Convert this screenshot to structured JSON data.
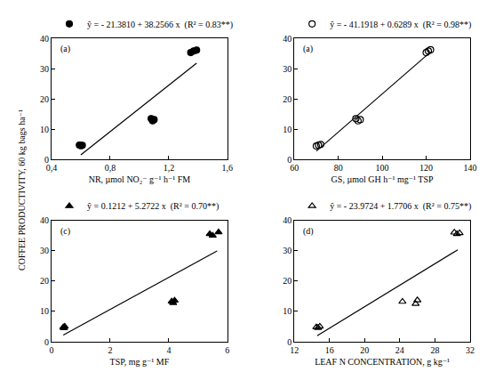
{
  "y_label": "COFFEE PRODUCTIVITY, 60 kg bags ha⁻¹",
  "chart_data": [
    {
      "type": "scatter",
      "panel": "(a)",
      "legend_text": "ŷ = - 21.3810 + 38.2566 x  (R² = 0.83**)",
      "x_label": "NR, µmol NO₂⁻ g⁻¹ h⁻¹ FM",
      "x": [
        0.59,
        0.6,
        0.61,
        1.08,
        1.09,
        1.1,
        1.35,
        1.37,
        1.39
      ],
      "values": [
        4.8,
        4.6,
        4.7,
        13.5,
        12.8,
        13.2,
        35.3,
        35.8,
        36.1
      ],
      "fit_line": {
        "x": [
          0.6,
          1.39
        ],
        "y": [
          1.6,
          31.8
        ]
      },
      "color": "#000000",
      "marker": "circle",
      "line_style": "solid",
      "grid": false,
      "xlim": [
        0.4,
        1.6
      ],
      "xticks": [
        {
          "value": 0.4,
          "label": "0,4"
        },
        {
          "value": 0.8,
          "label": "0,8"
        },
        {
          "value": 1.2,
          "label": "1,2"
        },
        {
          "value": 1.6,
          "label": "1,6"
        }
      ],
      "ylim": [
        0,
        40
      ],
      "yticks": [
        0,
        10,
        20,
        30,
        40
      ]
    },
    {
      "type": "scatter",
      "panel": "(a)",
      "legend_text": "ŷ = - 41.1918 + 0.6289 x  (R² = 0.98**)",
      "x_label": "GS, µmol GH h⁻¹ mg⁻¹ TSP",
      "x": [
        70,
        71,
        72,
        88,
        89,
        90,
        120,
        121,
        122
      ],
      "values": [
        4.5,
        4.8,
        5.0,
        13.5,
        12.8,
        13.2,
        35.3,
        35.8,
        36.2
      ],
      "fit_line": {
        "x": [
          70,
          122
        ],
        "y": [
          2.8,
          35.5
        ]
      },
      "color": "#000000",
      "marker": "circle-open",
      "line_style": "solid",
      "grid": false,
      "xlim": [
        60,
        140
      ],
      "xticks": [
        60,
        80,
        100,
        120,
        140
      ],
      "ylim": [
        0,
        40
      ],
      "yticks": [
        0,
        10,
        20,
        30,
        40
      ]
    },
    {
      "type": "scatter",
      "panel": "(c)",
      "legend_text": "ŷ = 0.1212 + 5.2722 x  (R² = 0.70**)",
      "x_label": "TSP, mg g⁻¹ MF",
      "x": [
        0.4,
        0.42,
        0.45,
        4.1,
        4.15,
        4.2,
        5.4,
        5.5,
        5.7
      ],
      "values": [
        4.8,
        4.5,
        5.0,
        13.3,
        12.8,
        13.6,
        35.5,
        35.0,
        36.1
      ],
      "fit_line": {
        "x": [
          0.4,
          5.65
        ],
        "y": [
          2.2,
          29.9
        ]
      },
      "color": "#000000",
      "marker": "triangle-up",
      "line_style": "solid",
      "grid": false,
      "xlim": [
        0,
        6
      ],
      "xticks": [
        0,
        2,
        4,
        6
      ],
      "ylim": [
        0,
        40
      ],
      "yticks": [
        0,
        10,
        20,
        30,
        40
      ]
    },
    {
      "type": "scatter",
      "panel": "(d)",
      "legend_text": "ŷ = - 23.9724 + 1.7706 x  (R² = 0.75**)",
      "x_label": "LEAF N CONCENTRATION, g kg⁻¹",
      "x": [
        14.5,
        14.7,
        14.9,
        24.3,
        25.8,
        26.0,
        30.2,
        30.5,
        30.8
      ],
      "values": [
        4.8,
        4.6,
        5.0,
        13.2,
        12.5,
        13.7,
        36.0,
        35.5,
        35.8
      ],
      "fit_line": {
        "x": [
          14.6,
          30.6
        ],
        "y": [
          2.0,
          30.3
        ]
      },
      "color": "#000000",
      "marker": "triangle-up-open",
      "line_style": "solid",
      "grid": false,
      "xlim": [
        12,
        32
      ],
      "xticks": [
        12,
        16,
        20,
        24,
        28,
        32
      ],
      "ylim": [
        0,
        40
      ],
      "yticks": [
        0,
        10,
        20,
        30,
        40
      ]
    }
  ]
}
